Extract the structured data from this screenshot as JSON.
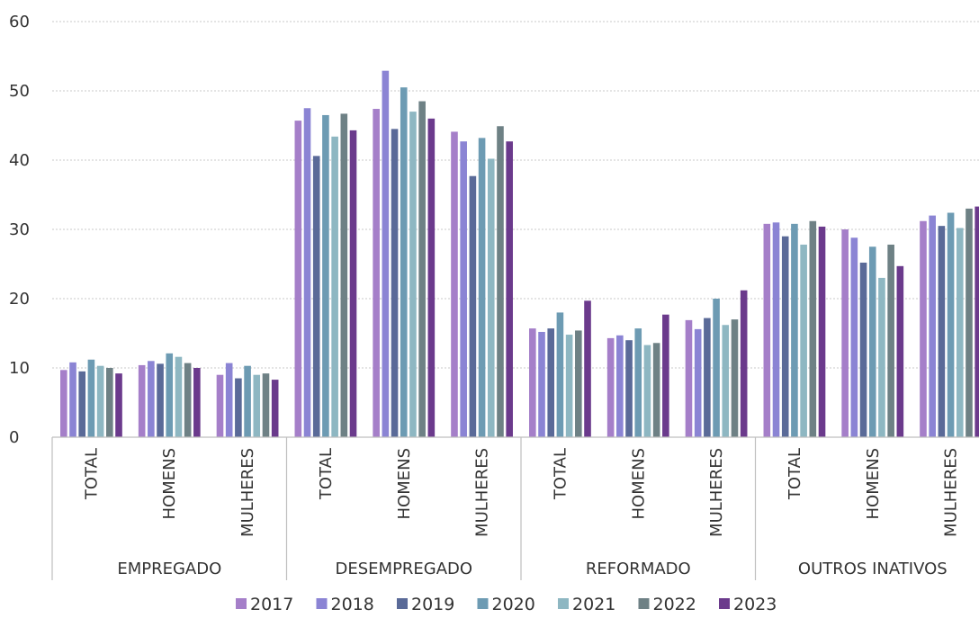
{
  "chart_data": {
    "type": "bar",
    "title": "",
    "xlabel": "",
    "ylabel": "",
    "ylim": [
      0,
      60
    ],
    "yticks": [
      0,
      10,
      20,
      30,
      40,
      50,
      60
    ],
    "grid": true,
    "legend_position": "bottom",
    "groups": [
      {
        "label": "EMPREGADO",
        "categories": [
          "TOTAL",
          "HOMENS",
          "MULHERES"
        ]
      },
      {
        "label": "DESEMPREGADO",
        "categories": [
          "TOTAL",
          "HOMENS",
          "MULHERES"
        ]
      },
      {
        "label": "REFORMADO",
        "categories": [
          "TOTAL",
          "HOMENS",
          "MULHERES"
        ]
      },
      {
        "label": "OUTROS INATIVOS",
        "categories": [
          "TOTAL",
          "HOMENS",
          "MULHERES"
        ]
      }
    ],
    "series": [
      {
        "name": "2017",
        "color": "#a57fc9",
        "values": [
          9.7,
          10.4,
          9.0,
          45.7,
          47.4,
          44.1,
          15.7,
          14.3,
          16.9,
          30.8,
          30.0,
          31.2
        ]
      },
      {
        "name": "2018",
        "color": "#8b84d4",
        "values": [
          10.8,
          11.0,
          10.7,
          47.5,
          52.9,
          42.7,
          15.2,
          14.7,
          15.6,
          31.0,
          28.8,
          32.0
        ]
      },
      {
        "name": "2019",
        "color": "#5a6a98",
        "values": [
          9.5,
          10.6,
          8.5,
          40.6,
          44.5,
          37.7,
          15.7,
          14.0,
          17.2,
          29.0,
          25.2,
          30.5
        ]
      },
      {
        "name": "2020",
        "color": "#6d9bb3",
        "values": [
          11.2,
          12.1,
          10.3,
          46.5,
          50.5,
          43.2,
          18.0,
          15.7,
          20.0,
          30.8,
          27.5,
          32.4
        ]
      },
      {
        "name": "2021",
        "color": "#8eb7c2",
        "values": [
          10.3,
          11.6,
          9.0,
          43.4,
          47.0,
          40.2,
          14.8,
          13.3,
          16.2,
          27.8,
          23.0,
          30.2
        ]
      },
      {
        "name": "2022",
        "color": "#6e8185",
        "values": [
          10.0,
          10.7,
          9.2,
          46.7,
          48.5,
          44.9,
          15.4,
          13.6,
          17.0,
          31.2,
          27.8,
          33.0
        ]
      },
      {
        "name": "2023",
        "color": "#6b3a8c",
        "values": [
          9.2,
          10.0,
          8.3,
          44.3,
          46.0,
          42.7,
          19.7,
          17.7,
          21.2,
          30.4,
          24.7,
          33.3
        ]
      }
    ]
  }
}
